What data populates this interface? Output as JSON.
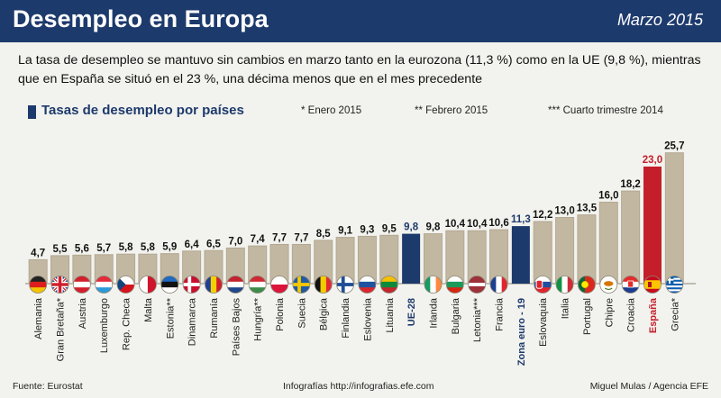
{
  "header": {
    "title": "Desempleo en Europa",
    "date": "Marzo 2015"
  },
  "description": "La tasa de desempleo se mantuvo sin cambios en marzo tanto en la eurozona (11,3 %) como en la UE (9,8 %), mientras que en España se situó en el 23 %, una décima menos que en el mes precedente",
  "notes": {
    "enero": "* Enero 2015",
    "febrero": "** Febrero 2015",
    "cuarto": "*** Cuarto trimestre 2014"
  },
  "footer": {
    "source": "Fuente: Eurostat",
    "credit": "Infografías http://infografias.efe.com",
    "author": "Miguel Mulas / Agencia EFE"
  },
  "colors": {
    "header": "#1d3a6c",
    "bar": "#c2b7a1",
    "highlight": "#1d3a6c",
    "spain": "#c41e2a",
    "background": "#f2f2ee"
  },
  "chart_data": {
    "type": "bar",
    "title": "Tasas de desempleo por países",
    "ylim": [
      0,
      26
    ],
    "grid": false,
    "categories": [
      "Alemania",
      "Gran Bretaña*",
      "Austria",
      "Luxemburgo",
      "Rep. Checa",
      "Malta",
      "Estonia**",
      "Dinamarca",
      "Rumanía",
      "Países Bajos",
      "Hungría**",
      "Polonia",
      "Suecia",
      "Bélgica",
      "Finlandia",
      "Eslovenia",
      "Lituania",
      "UE-28",
      "Irlanda",
      "Bulgaria",
      "Letonia***",
      "Francia",
      "Zona euro - 19",
      "Eslovaquia",
      "Italia",
      "Portugal",
      "Chipre",
      "Croacia",
      "España",
      "Grecia*"
    ],
    "values": [
      4.7,
      5.5,
      5.6,
      5.7,
      5.8,
      5.8,
      5.9,
      6.4,
      6.5,
      7.0,
      7.4,
      7.7,
      7.7,
      8.5,
      9.1,
      9.3,
      9.5,
      9.8,
      9.8,
      10.4,
      10.4,
      10.6,
      11.3,
      12.2,
      13.0,
      13.5,
      16.0,
      18.2,
      23.0,
      25.7
    ],
    "value_labels": [
      "4,7",
      "5,5",
      "5,6",
      "5,7",
      "5,8",
      "5,8",
      "5,9",
      "6,4",
      "6,5",
      "7,0",
      "7,4",
      "7,7",
      "7,7",
      "8,5",
      "9,1",
      "9,3",
      "9,5",
      "9,8",
      "9,8",
      "10,4",
      "10,4",
      "10,6",
      "11,3",
      "12,2",
      "13,0",
      "13,5",
      "16,0",
      "18,2",
      "23,0",
      "25,7"
    ],
    "highlight": {
      "UE-28": "aggregate",
      "Zona euro - 19": "aggregate",
      "España": "spain"
    },
    "flags": [
      "flag-de-icon",
      "flag-gb-icon",
      "flag-at-icon",
      "flag-lu-icon",
      "flag-cz-icon",
      "flag-mt-icon",
      "flag-ee-icon",
      "flag-dk-icon",
      "flag-ro-icon",
      "flag-nl-icon",
      "flag-hu-icon",
      "flag-pl-icon",
      "flag-se-icon",
      "flag-be-icon",
      "flag-fi-icon",
      "flag-si-icon",
      "flag-lt-icon",
      "",
      "flag-ie-icon",
      "flag-bg-icon",
      "flag-lv-icon",
      "flag-fr-icon",
      "",
      "flag-sk-icon",
      "flag-it-icon",
      "flag-pt-icon",
      "flag-cy-icon",
      "flag-hr-icon",
      "flag-es-icon",
      "flag-gr-icon"
    ]
  }
}
